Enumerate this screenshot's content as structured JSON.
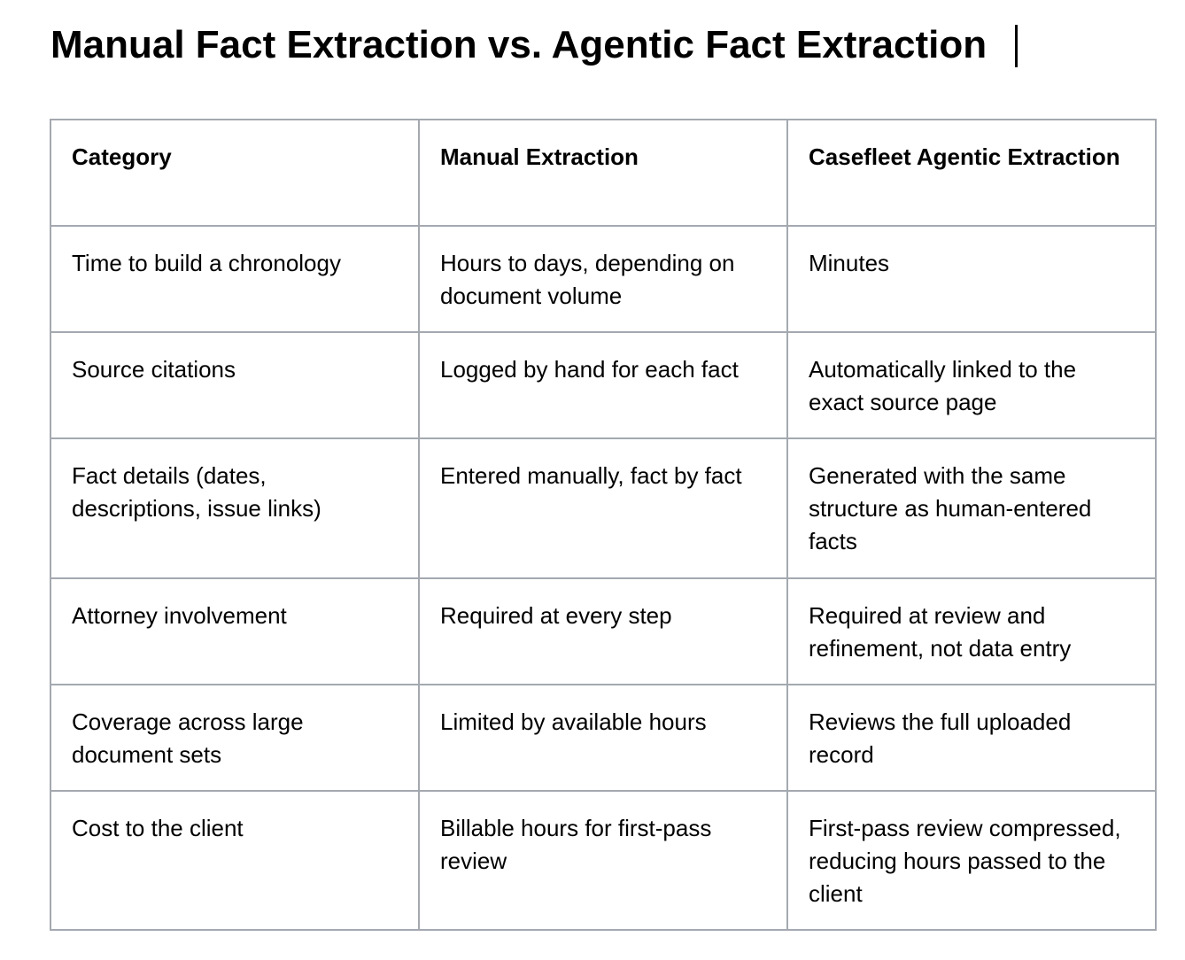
{
  "title": "Manual Fact Extraction vs. Agentic Fact Extraction",
  "table": {
    "header": [
      "Category",
      "Manual Extraction",
      "Casefleet Agentic Extraction"
    ],
    "rows": [
      [
        "Time to build a chronology",
        "Hours to days, depending on document volume",
        "Minutes"
      ],
      [
        "Source citations",
        "Logged by hand for each fact",
        "Automatically linked to the exact source page"
      ],
      [
        "Fact details (dates, descriptions, issue links)",
        "Entered manually, fact by fact",
        "Generated with the same structure as human-entered facts"
      ],
      [
        "Attorney involvement",
        "Required at every step",
        "Required at review and refinement, not data entry"
      ],
      [
        "Coverage across large document sets",
        "Limited by available hours",
        "Reviews the full uploaded record"
      ],
      [
        "Cost to the client",
        "Billable hours for first-pass review",
        "First-pass review compressed, reducing hours passed to the client"
      ]
    ]
  }
}
